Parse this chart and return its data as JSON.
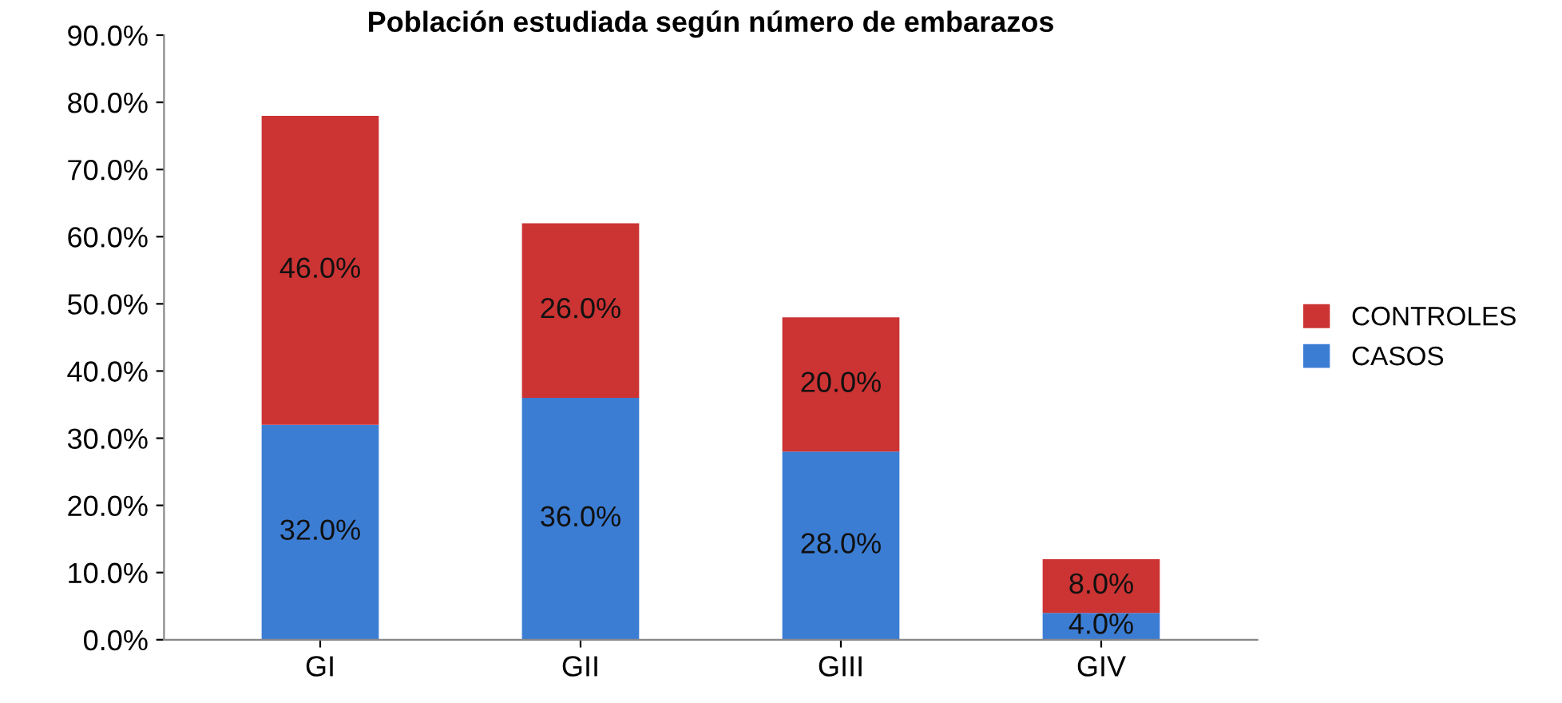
{
  "chart_data": {
    "type": "bar",
    "title": "Población estudiada según número de embarazos",
    "stacked": true,
    "categories": [
      "GI",
      "GII",
      "GIII",
      "GIV"
    ],
    "series": [
      {
        "name": "CASOS",
        "color": "#3c7dd4",
        "values": [
          32,
          36,
          28,
          4
        ],
        "value_labels": [
          "32.0%",
          "36.0%",
          "28.0%",
          "4.0%"
        ]
      },
      {
        "name": "CONTROLES",
        "color": "#cc3333",
        "values": [
          46,
          26,
          20,
          8
        ],
        "value_labels": [
          "46.0%",
          "26.0%",
          "20.0%",
          "8.0%"
        ]
      }
    ],
    "ylim": [
      0,
      90
    ],
    "yticks": [
      {
        "value": 0,
        "label": "0.0%"
      },
      {
        "value": 10,
        "label": "10.0%"
      },
      {
        "value": 20,
        "label": "20.0%"
      },
      {
        "value": 30,
        "label": "30.0%"
      },
      {
        "value": 40,
        "label": "40.0%"
      },
      {
        "value": 50,
        "label": "50.0%"
      },
      {
        "value": 60,
        "label": "60.0%"
      },
      {
        "value": 70,
        "label": "70.0%"
      },
      {
        "value": 80,
        "label": "80.0%"
      },
      {
        "value": 90,
        "label": "90.0%"
      }
    ],
    "grid": false,
    "legend": "right"
  }
}
